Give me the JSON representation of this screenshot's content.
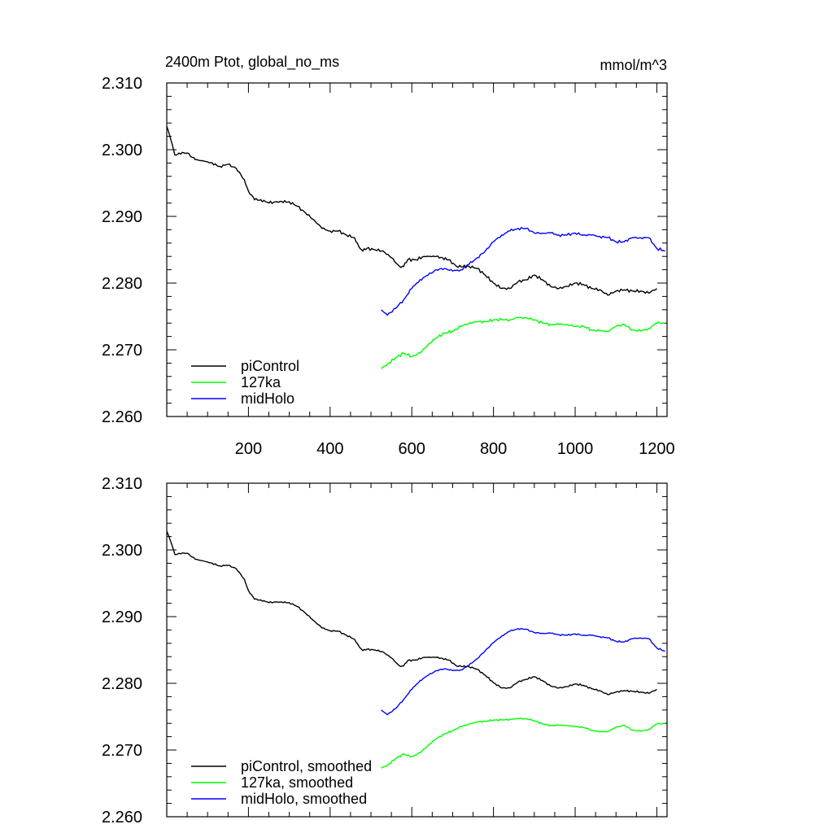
{
  "chart_data": [
    {
      "type": "line",
      "title": "2400m Ptot, global_no_ms",
      "units": "mmol/m^3",
      "xlim": [
        0,
        1225
      ],
      "ylim": [
        2.26,
        2.31
      ],
      "x_ticks": [
        200,
        400,
        600,
        800,
        1000,
        1200
      ],
      "x_tick_labels": [
        "200",
        "400",
        "600",
        "800",
        "1000",
        "1200"
      ],
      "y_ticks": [
        2.26,
        2.27,
        2.28,
        2.29,
        2.3,
        2.31
      ],
      "y_tick_labels": [
        "2.260",
        "2.270",
        "2.280",
        "2.290",
        "2.300",
        "2.310"
      ],
      "legend_position": "bottom-left",
      "series": [
        {
          "name": "piControl",
          "color": "#000000",
          "x": [
            0,
            10,
            20,
            30,
            50,
            70,
            100,
            130,
            150,
            170,
            190,
            200,
            215,
            230,
            250,
            270,
            300,
            320,
            340,
            360,
            380,
            400,
            420,
            440,
            460,
            470,
            480,
            490,
            510,
            530,
            550,
            570,
            580,
            590,
            610,
            630,
            660,
            690,
            710,
            740,
            760,
            780,
            800,
            820,
            840,
            860,
            880,
            900,
            920,
            940,
            960,
            980,
            1000,
            1020,
            1040,
            1060,
            1080,
            1100,
            1120,
            1140,
            1160,
            1180,
            1200
          ],
          "values": [
            2.3035,
            2.3015,
            2.2992,
            2.2995,
            2.2995,
            2.2985,
            2.2982,
            2.2975,
            2.2978,
            2.2972,
            2.2955,
            2.2938,
            2.2925,
            2.2925,
            2.292,
            2.2922,
            2.2922,
            2.2915,
            2.2905,
            2.2895,
            2.2882,
            2.2878,
            2.2878,
            2.2872,
            2.2868,
            2.2855,
            2.2848,
            2.2852,
            2.285,
            2.2848,
            2.2838,
            2.2825,
            2.2825,
            2.2835,
            2.2835,
            2.284,
            2.284,
            2.2835,
            2.2825,
            2.2825,
            2.2822,
            2.2812,
            2.28,
            2.2792,
            2.2792,
            2.2802,
            2.2805,
            2.2812,
            2.2805,
            2.2795,
            2.2792,
            2.2795,
            2.28,
            2.2798,
            2.2792,
            2.279,
            2.2782,
            2.2788,
            2.279,
            2.2788,
            2.2788,
            2.2785,
            2.2792
          ]
        },
        {
          "name": "127ka",
          "color": "#00ff00",
          "x": [
            525,
            540,
            560,
            580,
            600,
            620,
            640,
            660,
            680,
            700,
            720,
            740,
            760,
            780,
            800,
            820,
            840,
            860,
            880,
            900,
            920,
            940,
            960,
            980,
            1000,
            1020,
            1040,
            1060,
            1080,
            1100,
            1120,
            1140,
            1160,
            1180,
            1200,
            1220
          ],
          "values": [
            2.2672,
            2.2678,
            2.2688,
            2.2695,
            2.269,
            2.2695,
            2.2708,
            2.2718,
            2.2725,
            2.2728,
            2.2735,
            2.274,
            2.2742,
            2.2742,
            2.2745,
            2.2745,
            2.2745,
            2.2748,
            2.2748,
            2.2745,
            2.274,
            2.2738,
            2.2738,
            2.2738,
            2.2735,
            2.2735,
            2.273,
            2.2728,
            2.2728,
            2.2735,
            2.2738,
            2.273,
            2.2728,
            2.2732,
            2.274,
            2.274
          ]
        },
        {
          "name": "midHolo",
          "color": "#0000ff",
          "x": [
            525,
            540,
            560,
            580,
            600,
            620,
            640,
            660,
            680,
            700,
            720,
            740,
            760,
            780,
            800,
            820,
            840,
            860,
            880,
            900,
            920,
            940,
            960,
            980,
            1000,
            1020,
            1040,
            1060,
            1080,
            1100,
            1120,
            1140,
            1160,
            1180,
            1200,
            1220
          ],
          "values": [
            2.276,
            2.2752,
            2.2762,
            2.2775,
            2.2792,
            2.2805,
            2.2812,
            2.282,
            2.2822,
            2.2818,
            2.282,
            2.2828,
            2.2838,
            2.2848,
            2.2862,
            2.2872,
            2.2878,
            2.2882,
            2.2882,
            2.2875,
            2.2875,
            2.2875,
            2.2872,
            2.2872,
            2.2875,
            2.2872,
            2.2872,
            2.287,
            2.2868,
            2.2862,
            2.2862,
            2.2868,
            2.2868,
            2.2868,
            2.2852,
            2.2848
          ]
        }
      ]
    },
    {
      "type": "line",
      "title": "",
      "xlim": [
        0,
        1225
      ],
      "ylim": [
        2.26,
        2.31
      ],
      "y_ticks": [
        2.26,
        2.27,
        2.28,
        2.29,
        2.3,
        2.31
      ],
      "y_tick_labels": [
        "2.260",
        "2.270",
        "2.280",
        "2.290",
        "2.300",
        "2.310"
      ],
      "legend_position": "bottom-left",
      "series": [
        {
          "name": "piControl, smoothed",
          "color": "#000000",
          "x": [
            0,
            10,
            20,
            30,
            50,
            70,
            100,
            130,
            150,
            170,
            190,
            200,
            215,
            230,
            250,
            270,
            300,
            320,
            340,
            360,
            380,
            400,
            420,
            440,
            460,
            470,
            480,
            490,
            510,
            530,
            550,
            570,
            580,
            590,
            610,
            630,
            660,
            690,
            710,
            740,
            760,
            780,
            800,
            820,
            840,
            860,
            880,
            900,
            920,
            940,
            960,
            980,
            1000,
            1020,
            1040,
            1060,
            1080,
            1100,
            1120,
            1140,
            1160,
            1180,
            1200
          ],
          "values": [
            2.3028,
            2.3012,
            2.2993,
            2.2995,
            2.2995,
            2.2986,
            2.2982,
            2.2976,
            2.2977,
            2.2972,
            2.2956,
            2.2939,
            2.2926,
            2.2925,
            2.2921,
            2.2922,
            2.2921,
            2.2915,
            2.2905,
            2.2894,
            2.2883,
            2.2879,
            2.2878,
            2.2872,
            2.2866,
            2.2856,
            2.2849,
            2.2851,
            2.285,
            2.2847,
            2.2838,
            2.2826,
            2.2826,
            2.2834,
            2.2835,
            2.2839,
            2.2839,
            2.2835,
            2.2826,
            2.2825,
            2.2821,
            2.2812,
            2.2801,
            2.2793,
            2.2793,
            2.2802,
            2.2806,
            2.281,
            2.2804,
            2.2796,
            2.2793,
            2.2795,
            2.2799,
            2.2797,
            2.2792,
            2.2789,
            2.2783,
            2.2787,
            2.2789,
            2.2788,
            2.2787,
            2.2785,
            2.2791
          ]
        },
        {
          "name": "127ka, smoothed",
          "color": "#00ff00",
          "x": [
            525,
            540,
            560,
            580,
            600,
            620,
            640,
            660,
            680,
            700,
            720,
            740,
            760,
            780,
            800,
            820,
            840,
            860,
            880,
            900,
            920,
            940,
            960,
            980,
            1000,
            1020,
            1040,
            1060,
            1080,
            1100,
            1120,
            1140,
            1160,
            1180,
            1200,
            1220
          ],
          "values": [
            2.2673,
            2.2677,
            2.2687,
            2.2694,
            2.269,
            2.2696,
            2.2707,
            2.2717,
            2.2724,
            2.2729,
            2.2735,
            2.2739,
            2.2742,
            2.2743,
            2.2745,
            2.2745,
            2.2746,
            2.2747,
            2.2747,
            2.2744,
            2.2739,
            2.2737,
            2.2737,
            2.2737,
            2.2735,
            2.2734,
            2.273,
            2.2727,
            2.2728,
            2.2734,
            2.2737,
            2.273,
            2.2728,
            2.2731,
            2.2739,
            2.274
          ]
        },
        {
          "name": "midHolo, smoothed",
          "color": "#0000ff",
          "x": [
            525,
            540,
            560,
            580,
            600,
            620,
            640,
            660,
            680,
            700,
            720,
            740,
            760,
            780,
            800,
            820,
            840,
            860,
            880,
            900,
            920,
            940,
            960,
            980,
            1000,
            1020,
            1040,
            1060,
            1080,
            1100,
            1120,
            1140,
            1160,
            1180,
            1200,
            1220
          ],
          "values": [
            2.276,
            2.2753,
            2.2762,
            2.2776,
            2.2791,
            2.2804,
            2.2812,
            2.2819,
            2.2822,
            2.2819,
            2.282,
            2.2827,
            2.2837,
            2.2849,
            2.2861,
            2.2871,
            2.2878,
            2.2882,
            2.2881,
            2.2876,
            2.2875,
            2.2875,
            2.2873,
            2.2872,
            2.2874,
            2.2872,
            2.2872,
            2.287,
            2.2868,
            2.2863,
            2.2862,
            2.2867,
            2.2868,
            2.2867,
            2.2853,
            2.2848
          ]
        }
      ]
    }
  ]
}
